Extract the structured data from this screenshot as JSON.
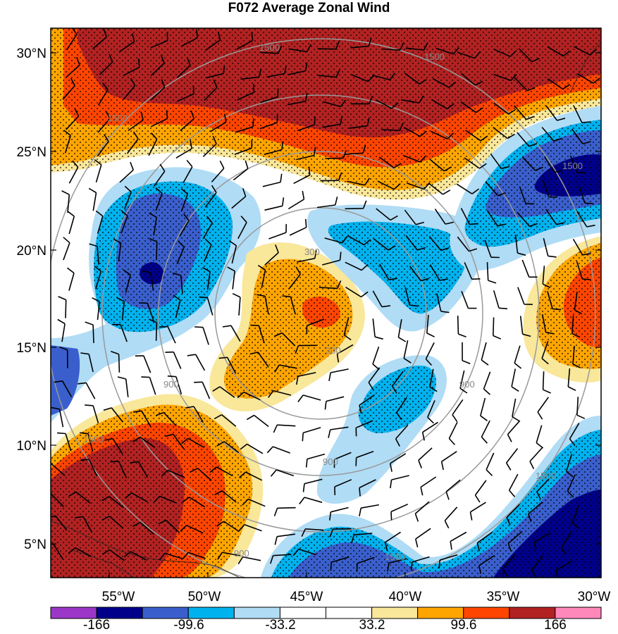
{
  "title": "F072 Average Zonal Wind",
  "lat_labels": [
    "30°N",
    "25°N",
    "20°N",
    "15°N",
    "10°N",
    "5°N"
  ],
  "lon_labels": [
    "55°W",
    "50°W",
    "45°W",
    "40°W",
    "35°W",
    "30°W"
  ],
  "colorbar": {
    "labels": [
      "-166",
      "-99.6",
      "-33.2",
      "33.2",
      "99.6",
      "166"
    ],
    "colors": [
      "#9b37c8",
      "#00008b",
      "#3a5fcd",
      "#00b2ee",
      "#b0dcf5",
      "#ffffff",
      "#ffffff",
      "#f9e79a",
      "#ffa500",
      "#ff4500",
      "#b22222",
      "#ff88bb"
    ]
  },
  "height_contour_labels": [
    "300",
    "300",
    "900",
    "900",
    "900",
    "1500",
    "1500",
    "1500",
    "1500",
    "1500",
    "1500",
    "1500",
    "900"
  ],
  "legend_colors": {
    "strong_positive": "#b22222",
    "positive": "#ff4500",
    "mild_positive": "#ffa500",
    "weak_positive": "#f9e79a",
    "neutral": "#ffffff",
    "weak_negative": "#b0dcf5",
    "mild_negative": "#00b2ee",
    "negative": "#3a5fcd",
    "strong_negative": "#00008b"
  }
}
